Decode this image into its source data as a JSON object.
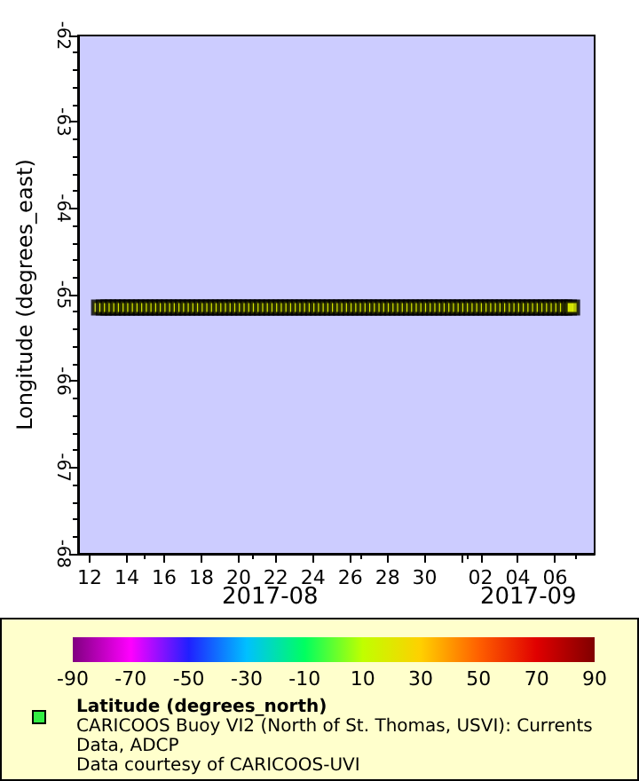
{
  "chart_data": {
    "type": "scatter",
    "ylabel": "Longitude (degrees_east)",
    "clabel": "Latitude (degrees_north)",
    "xlim": [
      "2017-08-11T09:00",
      "2017-09-08T03:00"
    ],
    "xticks": [
      {
        "value": "2017-08-12",
        "label": "12"
      },
      {
        "value": "2017-08-14",
        "label": "14"
      },
      {
        "value": "2017-08-16",
        "label": "16"
      },
      {
        "value": "2017-08-18",
        "label": "18"
      },
      {
        "value": "2017-08-20",
        "label": "20"
      },
      {
        "value": "2017-08-22",
        "label": "22"
      },
      {
        "value": "2017-08-24",
        "label": "24"
      },
      {
        "value": "2017-08-26",
        "label": "26"
      },
      {
        "value": "2017-08-28",
        "label": "28"
      },
      {
        "value": "2017-08-30",
        "label": "30"
      },
      {
        "value": "2017-09-01",
        "label": null
      },
      {
        "value": "2017-09-02",
        "label": "02"
      },
      {
        "value": "2017-09-04",
        "label": "04"
      },
      {
        "value": "2017-09-06",
        "label": "06"
      }
    ],
    "ylim": [
      -68,
      -62
    ],
    "yticks": [
      -68,
      -67,
      -66,
      -65,
      -64,
      -63,
      -62
    ],
    "clim": [
      -90,
      90
    ],
    "cticks": [
      -90,
      -70,
      -50,
      -30,
      -10,
      10,
      30,
      50,
      70,
      90
    ],
    "marker": "square",
    "grid": false,
    "annotations": [
      "2017-08",
      "2017-09",
      "CARICOOS Buoy VI2 (North of St. Thomas, USVI): Currents Data, ADCP",
      "Data courtesy of CARICOOS-UVI"
    ],
    "x": [
      "2017-08-12T12:00",
      "2017-08-12T18:00",
      "2017-08-13T00:00",
      "2017-08-13T06:00",
      "2017-08-13T12:00",
      "2017-08-13T18:00",
      "2017-08-14T00:00",
      "2017-08-14T06:00",
      "2017-08-14T12:00",
      "2017-08-14T18:00",
      "2017-08-15T00:00",
      "2017-08-15T06:00",
      "2017-08-15T12:00",
      "2017-08-15T18:00",
      "2017-08-16T00:00",
      "2017-08-16T06:00",
      "2017-08-16T12:00",
      "2017-08-16T18:00",
      "2017-08-17T00:00",
      "2017-08-17T06:00",
      "2017-08-17T12:00",
      "2017-08-17T18:00",
      "2017-08-18T00:00",
      "2017-08-18T06:00",
      "2017-08-18T12:00",
      "2017-08-18T18:00",
      "2017-08-19T00:00",
      "2017-08-19T06:00",
      "2017-08-19T12:00",
      "2017-08-19T18:00",
      "2017-08-20T00:00",
      "2017-08-20T06:00",
      "2017-08-20T12:00",
      "2017-08-20T18:00",
      "2017-08-21T00:00",
      "2017-08-21T06:00",
      "2017-08-21T12:00",
      "2017-08-21T18:00",
      "2017-08-22T00:00",
      "2017-08-22T06:00",
      "2017-08-22T12:00",
      "2017-08-22T18:00",
      "2017-08-23T00:00",
      "2017-08-23T06:00",
      "2017-08-23T12:00",
      "2017-08-23T18:00",
      "2017-08-24T00:00",
      "2017-08-24T06:00",
      "2017-08-24T12:00",
      "2017-08-24T18:00",
      "2017-08-25T00:00",
      "2017-08-25T06:00",
      "2017-08-25T12:00",
      "2017-08-25T18:00",
      "2017-08-26T00:00",
      "2017-08-26T06:00",
      "2017-08-26T12:00",
      "2017-08-26T18:00",
      "2017-08-27T00:00",
      "2017-08-27T06:00",
      "2017-08-27T12:00",
      "2017-08-27T18:00",
      "2017-08-28T00:00",
      "2017-08-28T06:00",
      "2017-08-28T12:00",
      "2017-08-28T18:00",
      "2017-08-29T00:00",
      "2017-08-29T06:00",
      "2017-08-29T12:00",
      "2017-08-29T18:00",
      "2017-08-30T00:00",
      "2017-08-30T06:00",
      "2017-08-30T12:00",
      "2017-08-30T18:00",
      "2017-08-31T00:00",
      "2017-08-31T06:00",
      "2017-08-31T12:00",
      "2017-08-31T18:00",
      "2017-09-01T00:00",
      "2017-09-01T06:00",
      "2017-09-01T12:00",
      "2017-09-01T18:00",
      "2017-09-02T00:00",
      "2017-09-02T06:00",
      "2017-09-02T12:00",
      "2017-09-02T18:00",
      "2017-09-03T00:00",
      "2017-09-03T06:00",
      "2017-09-03T12:00",
      "2017-09-03T18:00",
      "2017-09-04T00:00",
      "2017-09-04T06:00",
      "2017-09-04T12:00",
      "2017-09-04T18:00",
      "2017-09-05T00:00",
      "2017-09-05T06:00",
      "2017-09-05T12:00",
      "2017-09-05T18:00",
      "2017-09-06T00:00",
      "2017-09-06T06:00",
      "2017-09-06T12:00",
      "2017-09-06T18:00",
      "2017-09-06T22:00"
    ],
    "values": [
      -65.15,
      -65.15,
      -65.15,
      -65.15,
      -65.15,
      -65.15,
      -65.15,
      -65.15,
      -65.15,
      -65.15,
      -65.15,
      -65.15,
      -65.15,
      -65.15,
      -65.15,
      -65.15,
      -65.15,
      -65.15,
      -65.15,
      -65.15,
      -65.15,
      -65.15,
      -65.15,
      -65.15,
      -65.15,
      -65.15,
      -65.15,
      -65.15,
      -65.15,
      -65.15,
      -65.15,
      -65.15,
      -65.15,
      -65.15,
      -65.15,
      -65.15,
      -65.15,
      -65.15,
      -65.15,
      -65.15,
      -65.15,
      -65.15,
      -65.15,
      -65.15,
      -65.15,
      -65.15,
      -65.15,
      -65.15,
      -65.15,
      -65.15,
      -65.15,
      -65.15,
      -65.15,
      -65.15,
      -65.15,
      -65.15,
      -65.15,
      -65.15,
      -65.15,
      -65.15,
      -65.15,
      -65.15,
      -65.15,
      -65.15,
      -65.15,
      -65.15,
      -65.15,
      -65.15,
      -65.15,
      -65.15,
      -65.15,
      -65.15,
      -65.15,
      -65.15,
      -65.15,
      -65.15,
      -65.15,
      -65.15,
      -65.15,
      -65.15,
      -65.15,
      -65.15,
      -65.15,
      -65.15,
      -65.15,
      -65.15,
      -65.15,
      -65.15,
      -65.15,
      -65.15,
      -65.15,
      -65.15,
      -65.15,
      -65.15,
      -65.15,
      -65.15,
      -65.15,
      -65.15,
      -65.15,
      -65.15,
      -65.15,
      -65.15,
      -65.15
    ],
    "cvalues": [
      18.4,
      18.4,
      18.4,
      18.4,
      18.4,
      18.4,
      18.4,
      18.4,
      18.4,
      18.4,
      18.4,
      18.4,
      18.4,
      18.4,
      18.4,
      18.4,
      18.4,
      18.4,
      18.4,
      18.4,
      18.4,
      18.4,
      18.4,
      18.4,
      18.4,
      18.4,
      18.4,
      18.4,
      18.4,
      18.4,
      18.4,
      18.4,
      18.4,
      18.4,
      18.4,
      18.4,
      18.4,
      18.4,
      18.4,
      18.4,
      18.4,
      18.4,
      18.4,
      18.4,
      18.4,
      18.4,
      18.4,
      18.4,
      18.4,
      18.4,
      18.4,
      18.4,
      18.4,
      18.4,
      18.4,
      18.4,
      18.4,
      18.4,
      18.4,
      18.4,
      18.4,
      18.4,
      18.4,
      18.4,
      18.4,
      18.4,
      18.4,
      18.4,
      18.4,
      18.4,
      18.4,
      18.4,
      18.4,
      18.4,
      18.4,
      18.4,
      18.4,
      18.4,
      18.4,
      18.4,
      18.4,
      18.4,
      18.4,
      18.4,
      18.4,
      18.4,
      18.4,
      18.4,
      18.4,
      18.4,
      18.4,
      18.4,
      18.4,
      18.4,
      18.4,
      18.4,
      18.4,
      18.4,
      18.4,
      18.4,
      18.4,
      18.4,
      18.4
    ]
  }
}
